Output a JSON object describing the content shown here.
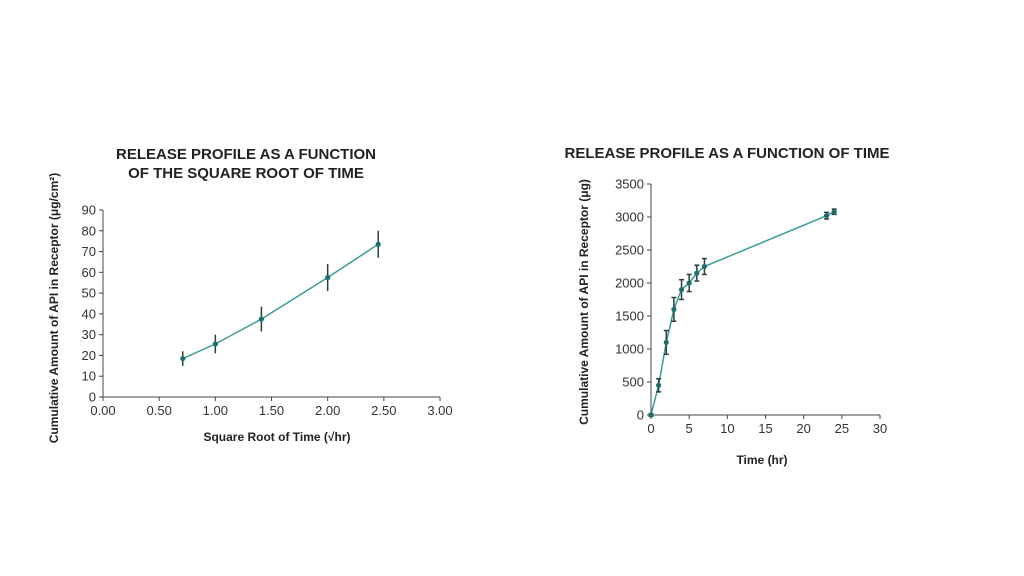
{
  "colors": {
    "series": "#3a9a9a",
    "marker": "#1f6e6e"
  },
  "chart_data": [
    {
      "type": "line",
      "title": "RELEASE PROFILE AS A FUNCTION OF THE SQUARE ROOT OF TIME",
      "title_lines": [
        "RELEASE PROFILE AS A FUNCTION",
        "OF THE SQUARE ROOT OF TIME"
      ],
      "xlabel": "Square Root of Time (√hr)",
      "ylabel": "Cumulative Amount of API in Receptor (μg/cm²)",
      "xlim": [
        0,
        3
      ],
      "ylim": [
        0,
        90
      ],
      "x_ticks": [
        "0.00",
        "0.50",
        "1.00",
        "1.50",
        "2.00",
        "2.50",
        "3.00"
      ],
      "y_ticks": [
        "0",
        "10",
        "20",
        "30",
        "40",
        "50",
        "60",
        "70",
        "80",
        "90"
      ],
      "grid": false,
      "series": [
        {
          "x": [
            0.71,
            1.0,
            1.41,
            2.0,
            2.45
          ],
          "y": [
            18.5,
            25.5,
            37.5,
            57.5,
            73.5
          ],
          "error": [
            3.5,
            4.5,
            6,
            6.5,
            6.5
          ]
        }
      ]
    },
    {
      "type": "line",
      "title": "RELEASE PROFILE AS A FUNCTION OF TIME",
      "title_lines": [
        "RELEASE PROFILE AS A FUNCTION OF TIME"
      ],
      "xlabel": "Time (hr)",
      "ylabel": "Cumulative Amount of API in Receptor (μg)",
      "xlim": [
        0,
        30
      ],
      "ylim": [
        0,
        3500
      ],
      "x_ticks": [
        "0",
        "5",
        "10",
        "15",
        "20",
        "25",
        "30"
      ],
      "y_ticks": [
        "0",
        "500",
        "1000",
        "1500",
        "2000",
        "2500",
        "3000",
        "3500"
      ],
      "grid": false,
      "series": [
        {
          "x": [
            0,
            1,
            2,
            3,
            4,
            5,
            6,
            7,
            23,
            24
          ],
          "y": [
            0,
            450,
            1100,
            1600,
            1900,
            2000,
            2150,
            2250,
            3020,
            3080
          ],
          "error": [
            20,
            100,
            180,
            180,
            150,
            130,
            120,
            120,
            50,
            40
          ]
        }
      ]
    }
  ]
}
